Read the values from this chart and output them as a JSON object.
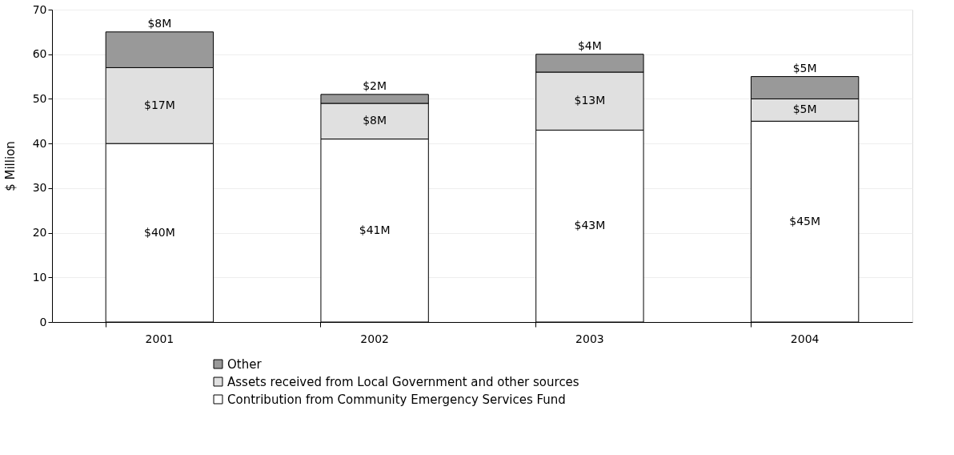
{
  "chart_data": {
    "type": "bar",
    "stacked": true,
    "ylabel": "$ Million",
    "categories": [
      "2001",
      "2002",
      "2003",
      "2004"
    ],
    "series": [
      {
        "name": "Contribution from Community Emergency Services Fund",
        "color": "#ffffff",
        "values": [
          40,
          41,
          43,
          45
        ],
        "value_labels": [
          "$40M",
          "$41M",
          "$43M",
          "$45M"
        ]
      },
      {
        "name": "Assets received from Local Government and other sources",
        "color": "#e0e0e0",
        "values": [
          17,
          8,
          13,
          5
        ],
        "value_labels": [
          "$17M",
          "$8M",
          "$13M",
          "$5M"
        ]
      },
      {
        "name": "Other",
        "color": "#999999",
        "values": [
          8,
          2,
          4,
          5
        ],
        "value_labels": [
          "$8M",
          "$2M",
          "$4M",
          "$5M"
        ]
      }
    ],
    "ylim": [
      0,
      70
    ],
    "yticks": [
      0,
      10,
      20,
      30,
      40,
      50,
      60,
      70
    ],
    "grid": "y",
    "legend": "bottom"
  }
}
